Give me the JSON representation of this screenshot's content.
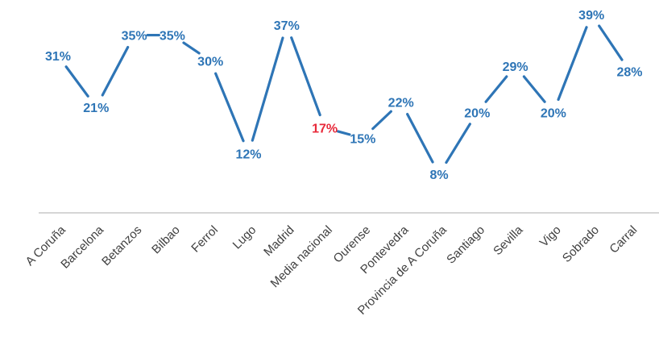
{
  "chart_data": {
    "type": "line",
    "categories": [
      "A Coruña",
      "Barcelona",
      "Betanzos",
      "Bilbao",
      "Ferrol",
      "Lugo",
      "Madrid",
      "Media nacional",
      "Ourense",
      "Pontevedra",
      "Provincia de A Coruña",
      "Santiago",
      "Sevilla",
      "Vigo",
      "Sobrado",
      "Carral"
    ],
    "values": [
      31,
      21,
      35,
      35,
      30,
      12,
      37,
      17,
      15,
      22,
      8,
      20,
      29,
      20,
      39,
      28
    ],
    "data_labels": [
      "31%",
      "21%",
      "35%",
      "35%",
      "30%",
      "12%",
      "37%",
      "17%",
      "15%",
      "22%",
      "8%",
      "20%",
      "29%",
      "20%",
      "39%",
      "28%"
    ],
    "highlight_index": 7,
    "title": "",
    "xlabel": "",
    "ylabel": "",
    "ylim": [
      0,
      40
    ],
    "grid": false,
    "legend": "none",
    "colors": {
      "line": "#2E75B6",
      "label": "#2E75B6",
      "highlight": "#E8293A",
      "axis": "#C8C8C8",
      "tick": "#404040"
    }
  }
}
